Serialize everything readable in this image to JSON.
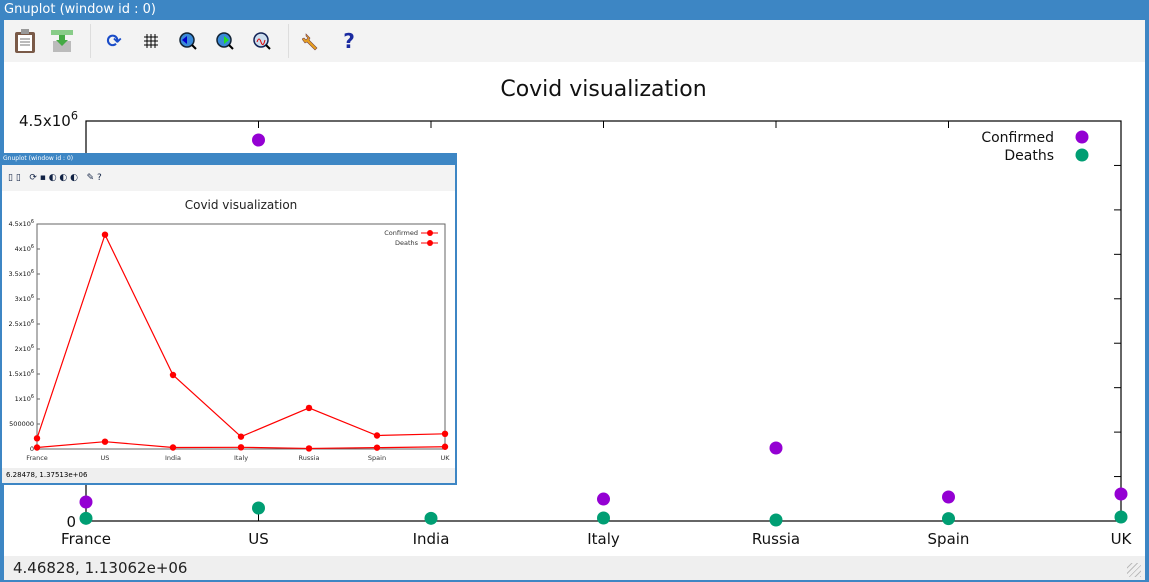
{
  "window": {
    "title": "Gnuplot (window id : 0)"
  },
  "toolbar": {
    "icons": [
      "clipboard-icon",
      "export-icon",
      "replot-icon",
      "grid-icon",
      "zoom-previous-icon",
      "zoom-next-icon",
      "autoscale-icon",
      "settings-wrench-icon",
      "help-icon"
    ],
    "help_glyph": "?"
  },
  "status": {
    "coords": "4.46828,  1.13062e+06"
  },
  "chart_data": {
    "type": "scatter",
    "title": "Covid visualization",
    "xlabel": "",
    "ylabel": "",
    "categories": [
      "France",
      "US",
      "India",
      "Italy",
      "Russia",
      "Spain",
      "UK"
    ],
    "ylim": [
      0,
      4500000
    ],
    "yticks_labeled": [
      "0",
      "4.5x10^6"
    ],
    "series": [
      {
        "name": "Confirmed",
        "color": "#9400d3",
        "values": [
          214000,
          4286000,
          1480000,
          247000,
          821000,
          270000,
          304000
        ]
      },
      {
        "name": "Deaths",
        "color": "#009e73",
        "values": [
          30000,
          146000,
          30000,
          34000,
          11000,
          27000,
          45000
        ]
      }
    ],
    "legend": "top-right",
    "grid": false
  },
  "inset": {
    "title": "Gnuplot (window id : 0)",
    "chart_title": "Covid visualization",
    "status": "6.28478,  1.37513e+06",
    "line_color": "#ff0000",
    "ytick_labels": [
      "0",
      "500000",
      "1x10^6",
      "1.5x10^6",
      "2x10^6",
      "2.5x10^6",
      "3x10^6",
      "3.5x10^6",
      "4x10^6",
      "4.5x10^6"
    ]
  }
}
